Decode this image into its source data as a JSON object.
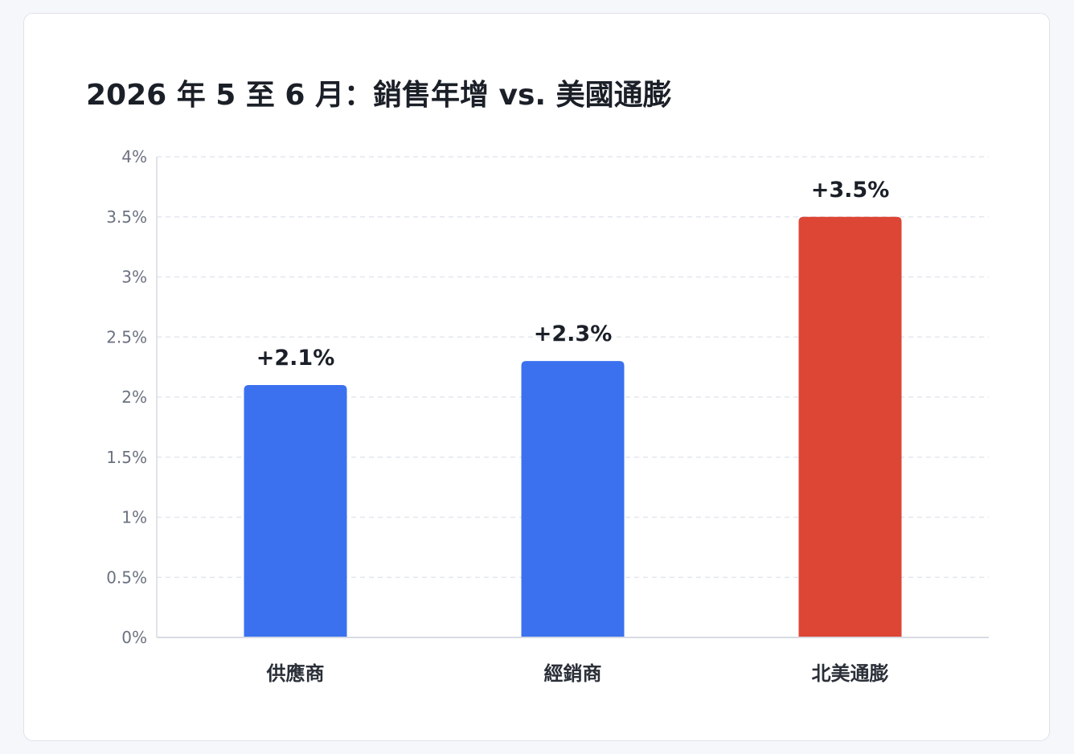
{
  "chart_data": {
    "type": "bar",
    "title": "2026 年 5 至 6 月：銷售年增 vs. 美國通膨",
    "categories": [
      "供應商",
      "經銷商",
      "北美通膨"
    ],
    "values": [
      2.1,
      2.3,
      3.5
    ],
    "value_labels": [
      "+2.1%",
      "+2.3%",
      "+3.5%"
    ],
    "bar_colors": [
      "#3b71ef",
      "#3b71ef",
      "#dd4535"
    ],
    "ylim": [
      0,
      4
    ],
    "yticks": [
      0,
      0.5,
      1,
      1.5,
      2,
      2.5,
      3,
      3.5,
      4
    ],
    "ytick_labels": [
      "0%",
      "0.5%",
      "1%",
      "1.5%",
      "2%",
      "2.5%",
      "3%",
      "3.5%",
      "4%"
    ],
    "xlabel": "",
    "ylabel": "",
    "grid": true,
    "legend": "none"
  }
}
